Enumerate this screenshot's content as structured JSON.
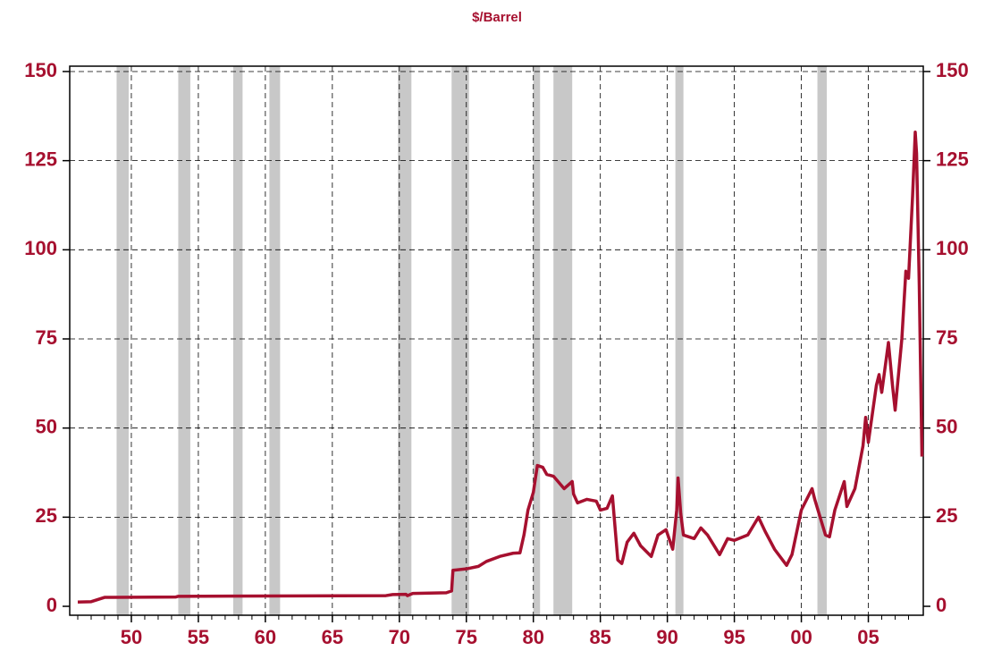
{
  "chart_data": {
    "type": "line",
    "title": "$/Barrel",
    "color": "#a6102f",
    "grid": true,
    "x": [
      1946.0,
      1947.0,
      1947.5,
      1948.0,
      1953.3,
      1953.5,
      1960.0,
      1969.0,
      1969.5,
      1970.5,
      1970.6,
      1971.0,
      1973.5,
      1973.9,
      1974.0,
      1975.0,
      1975.9,
      1976.5,
      1977.5,
      1978.5,
      1979.0,
      1979.3,
      1979.6,
      1980.0,
      1980.3,
      1980.7,
      1981.0,
      1981.5,
      1982.3,
      1982.6,
      1982.9,
      1983.0,
      1983.3,
      1984.0,
      1984.7,
      1985.0,
      1985.5,
      1985.9,
      1986.1,
      1986.3,
      1986.6,
      1987.0,
      1987.5,
      1988.0,
      1988.8,
      1989.3,
      1989.9,
      1990.4,
      1990.7,
      1990.8,
      1991.0,
      1991.2,
      1992.0,
      1992.5,
      1993.0,
      1993.9,
      1994.5,
      1995.0,
      1996.0,
      1996.8,
      1997.3,
      1998.0,
      1998.9,
      1999.3,
      2000.0,
      2000.8,
      2001.0,
      2001.8,
      2002.1,
      2002.5,
      2003.2,
      2003.4,
      2004.0,
      2004.6,
      2004.8,
      2005.0,
      2005.6,
      2005.8,
      2006.0,
      2006.5,
      2006.8,
      2007.0,
      2007.5,
      2007.8,
      2008.0,
      2008.3,
      2008.5,
      2008.6,
      2008.8,
      2009.0
    ],
    "values": [
      1.2,
      1.3,
      1.9,
      2.5,
      2.6,
      2.8,
      2.9,
      3.0,
      3.3,
      3.35,
      3.0,
      3.6,
      3.8,
      4.3,
      10.1,
      10.5,
      11.2,
      12.6,
      14.0,
      14.9,
      15,
      20,
      27,
      32,
      39.5,
      39,
      37,
      36.5,
      33,
      34,
      35,
      31.5,
      29,
      30,
      29.5,
      27,
      27.5,
      31,
      22,
      13,
      12,
      18,
      20.5,
      17,
      14,
      20,
      21.5,
      16,
      27,
      36,
      26,
      20,
      19,
      22,
      20,
      14.5,
      19,
      18.5,
      20,
      25,
      21,
      16,
      11.5,
      14.5,
      27,
      33,
      30,
      20,
      19.5,
      27,
      35,
      28,
      33,
      45,
      53,
      46,
      62,
      65,
      60,
      74,
      62,
      55,
      75,
      94,
      92,
      115,
      133,
      127,
      90,
      42
    ],
    "recessions": [
      [
        1948.9,
        1949.8
      ],
      [
        1953.5,
        1954.4
      ],
      [
        1957.6,
        1958.3
      ],
      [
        1960.3,
        1961.1
      ],
      [
        1969.9,
        1970.9
      ],
      [
        1973.9,
        1975.2
      ],
      [
        1980.0,
        1980.5
      ],
      [
        1981.5,
        1982.9
      ],
      [
        1990.6,
        1991.2
      ],
      [
        2001.2,
        2001.9
      ]
    ],
    "xlim": [
      1945.4,
      2009.1
    ],
    "ylim": [
      -2.5,
      151.5
    ],
    "xticks": [
      {
        "value": 1950,
        "label": "50"
      },
      {
        "value": 1955,
        "label": "55"
      },
      {
        "value": 1960,
        "label": "60"
      },
      {
        "value": 1965,
        "label": "65"
      },
      {
        "value": 1970,
        "label": "70"
      },
      {
        "value": 1975,
        "label": "75"
      },
      {
        "value": 1980,
        "label": "80"
      },
      {
        "value": 1985,
        "label": "85"
      },
      {
        "value": 1990,
        "label": "90"
      },
      {
        "value": 1995,
        "label": "95"
      },
      {
        "value": 2000,
        "label": "00"
      },
      {
        "value": 2005,
        "label": "05"
      }
    ],
    "xminorticks": [
      1946,
      1947,
      1948,
      1949,
      1951,
      1952,
      1953,
      1954,
      1956,
      1957,
      1958,
      1959,
      1961,
      1962,
      1963,
      1964,
      1966,
      1967,
      1968,
      1969,
      1971,
      1972,
      1973,
      1974,
      1976,
      1977,
      1978,
      1979,
      1981,
      1982,
      1983,
      1984,
      1986,
      1987,
      1988,
      1989,
      1991,
      1992,
      1993,
      1994,
      1996,
      1997,
      1998,
      1999,
      2001,
      2002,
      2003,
      2004,
      2006,
      2007,
      2008
    ],
    "yticks": [
      0,
      25,
      50,
      75,
      100,
      125,
      150
    ]
  }
}
